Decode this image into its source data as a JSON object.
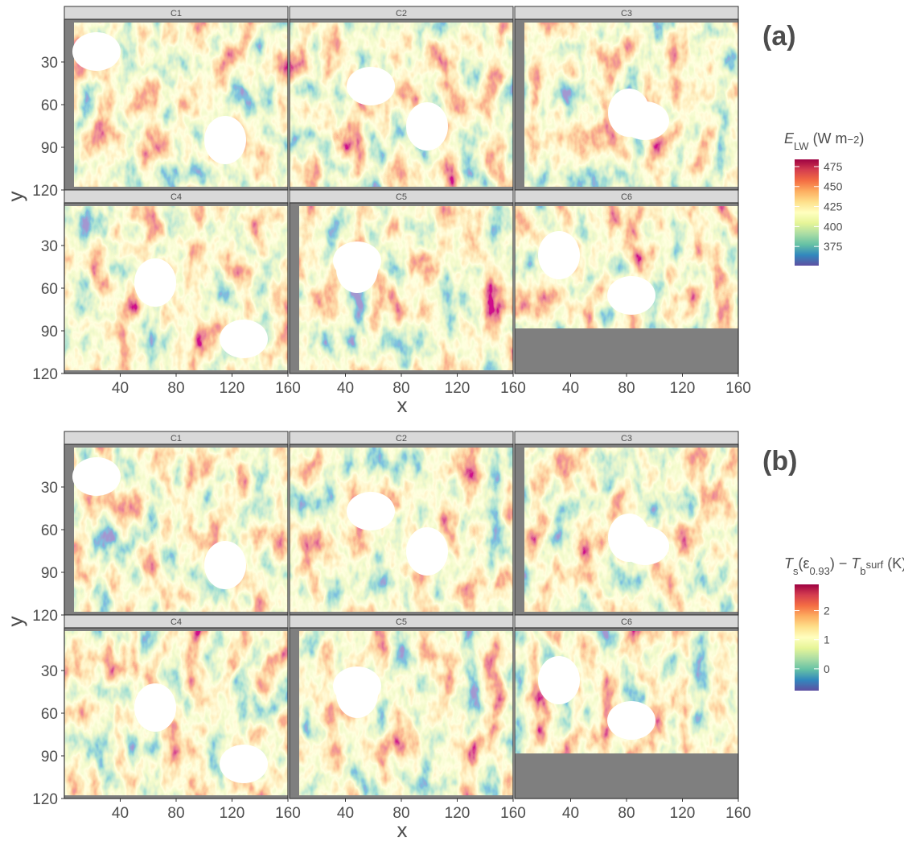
{
  "figures": [
    {
      "label": "(a)",
      "facets": [
        "C1",
        "C2",
        "C3",
        "C4",
        "C5",
        "C6"
      ],
      "xlabel": "x",
      "ylabel": "y",
      "xlim": [
        0,
        160
      ],
      "ylim": [
        0,
        120
      ],
      "xticks": [
        40,
        80,
        120,
        160
      ],
      "yticks": [
        30,
        60,
        90,
        120
      ],
      "legend_title": [
        {
          "text": "E",
          "style": "italic"
        },
        {
          "text": "LW",
          "shift": "sub"
        },
        {
          "text": " (W m"
        },
        {
          "text": "−2",
          "shift": "sup"
        },
        {
          "text": ")"
        }
      ],
      "colorbar_lim": [
        351,
        484
      ],
      "colorbar_ticks": [
        375,
        400,
        425,
        450,
        475
      ],
      "colors": [
        "#5e4fa2",
        "#3288bd",
        "#66c2a5",
        "#abdda4",
        "#e6f598",
        "#ffffbf",
        "#fee08b",
        "#fdae61",
        "#f46d43",
        "#d53e4f",
        "#9e0142"
      ]
    },
    {
      "label": "(b)",
      "facets": [
        "C1",
        "C2",
        "C3",
        "C4",
        "C5",
        "C6"
      ],
      "xlabel": "x",
      "ylabel": "y",
      "xlim": [
        0,
        160
      ],
      "ylim": [
        0,
        120
      ],
      "xticks": [
        40,
        80,
        120,
        160
      ],
      "yticks": [
        30,
        60,
        90,
        120
      ],
      "legend_title": [
        {
          "text": "T",
          "style": "italic"
        },
        {
          "text": "s",
          "shift": "sub"
        },
        {
          "text": "(ε"
        },
        {
          "text": "0.93",
          "shift": "sub"
        },
        {
          "text": ") − "
        },
        {
          "text": "T",
          "style": "italic"
        },
        {
          "text": "b",
          "shift": "sub"
        },
        {
          "text": "surf",
          "shift": "sup"
        },
        {
          "text": " (K)"
        }
      ],
      "colorbar_lim": [
        -0.75,
        2.9
      ],
      "colorbar_ticks": [
        0,
        1,
        2
      ],
      "colors": [
        "#5e4fa2",
        "#3288bd",
        "#66c2a5",
        "#abdda4",
        "#e6f598",
        "#ffffbf",
        "#fee08b",
        "#fdae61",
        "#f46d43",
        "#d53e4f",
        "#9e0142"
      ]
    }
  ]
}
